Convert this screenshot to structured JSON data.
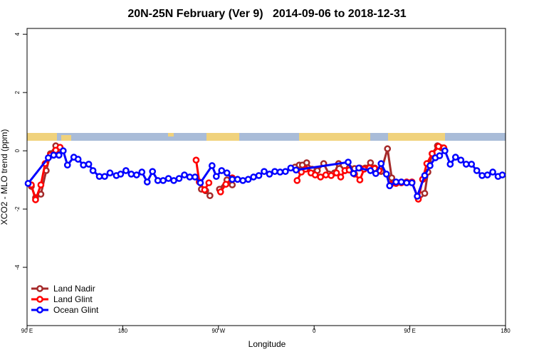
{
  "chart_data": {
    "type": "line",
    "title": "20N-25N February (Ver 9)   2014-09-06 to 2018-12-31",
    "x_label": "Longitude",
    "y_label": "XCO2 - MLO trend (ppm)",
    "xlim": [
      90,
      540
    ],
    "ylim": [
      -6,
      4.2
    ],
    "xticks": [
      {
        "value": 90,
        "label": "90 E"
      },
      180,
      {
        "value": 270,
        "label": "90 W"
      },
      {
        "value": 360,
        "label": "0"
      },
      {
        "value": 450,
        "label": "90 E"
      },
      {
        "value": 540,
        "label": "180"
      }
    ],
    "yticks": [
      -4,
      -2,
      0,
      2,
      4
    ],
    "legend": "bottomleft",
    "series": [
      {
        "name": "Land Nadir",
        "color": "#a52a2a",
        "x": [
          94,
          98,
          103,
          108,
          112,
          117,
          121,
          null,
          254,
          258,
          262,
          null,
          271,
          278,
          283,
          null,
          342,
          346,
          349,
          353,
          358,
          363,
          369,
          374,
          379,
          383,
          389,
          393,
          398,
          403,
          408,
          413,
          417,
          423,
          429,
          433,
          null,
          460,
          464,
          467,
          471,
          476,
          480
        ],
        "values": [
          -1.22,
          -1.61,
          -1.49,
          -0.68,
          -0.1,
          0.17,
          0.05,
          null,
          -1.32,
          -1.37,
          -1.54,
          null,
          -1.32,
          -1.0,
          -1.17,
          null,
          -0.56,
          -0.49,
          -0.49,
          -0.41,
          -0.63,
          -0.68,
          -0.44,
          -0.8,
          -0.76,
          -0.44,
          -0.68,
          -0.59,
          -0.61,
          -0.59,
          -0.59,
          -0.41,
          -0.59,
          -0.71,
          0.07,
          -0.93,
          null,
          -1.51,
          -1.46,
          -0.73,
          -0.1,
          0.17,
          0.1
        ]
      },
      {
        "name": "Land Glint",
        "color": "#ff0000",
        "x": [
          94,
          98,
          103,
          107,
          112,
          117,
          121,
          null,
          249,
          252,
          257,
          261,
          null,
          272,
          277,
          283,
          null,
          344,
          348,
          352,
          357,
          361,
          366,
          371,
          376,
          381,
          385,
          389,
          393,
          398,
          403,
          407,
          412,
          417,
          421,
          null,
          432,
          437,
          442,
          447,
          452,
          458,
          462,
          466,
          471,
          477,
          482
        ],
        "values": [
          -1.17,
          -1.68,
          -1.17,
          -0.44,
          -0.15,
          0.02,
          0.12,
          null,
          -0.32,
          -1.07,
          -1.34,
          -1.1,
          null,
          -1.41,
          -1.15,
          -0.93,
          null,
          -1.02,
          -0.73,
          -0.63,
          -0.76,
          -0.83,
          -0.9,
          -0.83,
          -0.85,
          -0.76,
          -0.9,
          -0.68,
          -0.66,
          -0.8,
          -1.0,
          -0.63,
          -0.59,
          -0.61,
          -0.68,
          null,
          -1.15,
          -1.12,
          -1.1,
          -1.07,
          -1.07,
          -1.66,
          -0.98,
          -0.44,
          -0.1,
          0.15,
          0.1
        ]
      },
      {
        "name": "Ocean Glint",
        "color": "#0000ff",
        "x": [
          91,
          110,
          115,
          120,
          124,
          128,
          134,
          138,
          143,
          148,
          152,
          158,
          163,
          168,
          174,
          178,
          183,
          188,
          193,
          198,
          203,
          208,
          213,
          218,
          223,
          228,
          233,
          238,
          243,
          248,
          253,
          264,
          268,
          273,
          278,
          283,
          288,
          293,
          298,
          303,
          308,
          313,
          318,
          323,
          328,
          333,
          338,
          343,
          392,
          397,
          402,
          413,
          418,
          423,
          428,
          431,
          437,
          442,
          447,
          452,
          457,
          464,
          469,
          474,
          478,
          483,
          488,
          493,
          498,
          503,
          508,
          513,
          518,
          523,
          528,
          533,
          537
        ],
        "values": [
          -1.12,
          -0.24,
          -0.15,
          -0.15,
          0,
          -0.49,
          -0.22,
          -0.29,
          -0.49,
          -0.46,
          -0.68,
          -0.88,
          -0.88,
          -0.76,
          -0.85,
          -0.8,
          -0.68,
          -0.8,
          -0.83,
          -0.73,
          -1.07,
          -0.71,
          -1.02,
          -1.02,
          -0.95,
          -1.02,
          -0.95,
          -0.83,
          -0.9,
          -0.9,
          -1.1,
          -0.51,
          -0.88,
          -0.68,
          -0.76,
          -0.98,
          -0.98,
          -1.02,
          -0.98,
          -0.9,
          -0.85,
          -0.71,
          -0.8,
          -0.71,
          -0.73,
          -0.71,
          -0.59,
          -0.66,
          -0.39,
          -0.78,
          -0.59,
          -0.68,
          -0.78,
          -0.44,
          -0.8,
          -1.2,
          -1.07,
          -1.07,
          -1.1,
          -1.1,
          -1.56,
          -0.85,
          -0.51,
          -0.24,
          -0.17,
          0,
          -0.46,
          -0.22,
          -0.32,
          -0.46,
          -0.46,
          -0.68,
          -0.85,
          -0.83,
          -0.73,
          -0.88,
          -0.83
        ]
      }
    ]
  }
}
